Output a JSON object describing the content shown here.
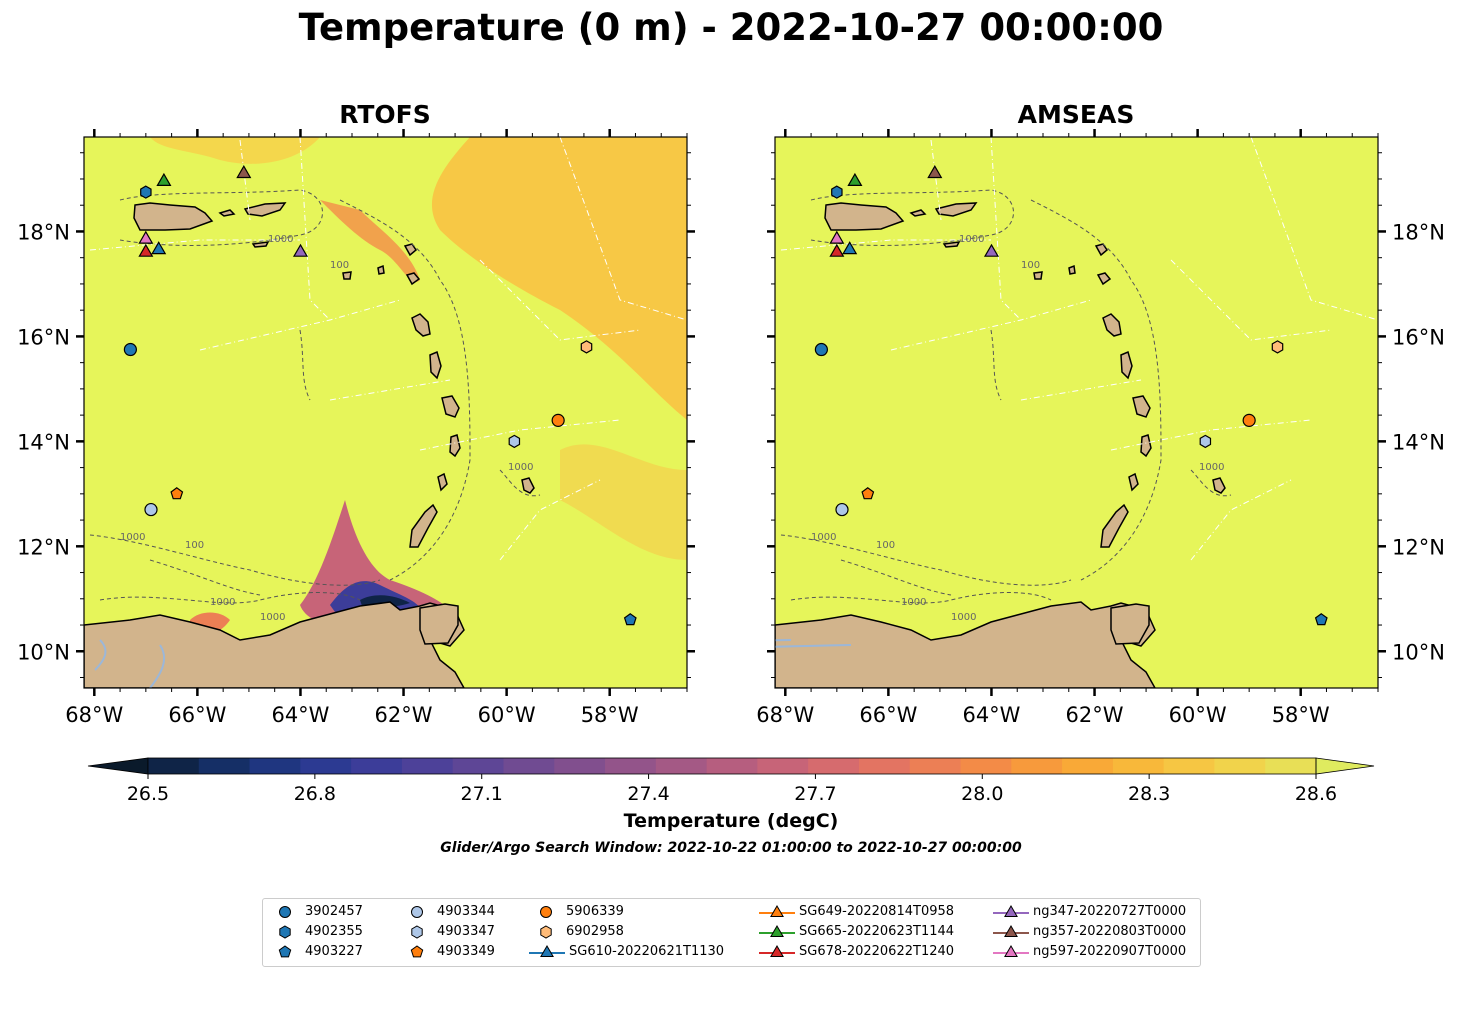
{
  "title": "Temperature (0 m) - 2022-10-27 00:00:00",
  "panels": [
    {
      "title": "RTOFS"
    },
    {
      "title": "AMSEAS"
    }
  ],
  "axes": {
    "lon_ticks": [
      "68°W",
      "66°W",
      "64°W",
      "62°W",
      "60°W",
      "58°W"
    ],
    "lat_ticks": [
      "18°N",
      "16°N",
      "14°N",
      "12°N",
      "10°N"
    ],
    "lon_range": [
      -68.2,
      -56.5
    ],
    "lat_range": [
      9.3,
      19.8
    ]
  },
  "contour_labels": [
    "100",
    "1000"
  ],
  "colorbar": {
    "label": "Temperature (degC)",
    "ticks": [
      "26.5",
      "26.8",
      "27.1",
      "27.4",
      "27.7",
      "28.0",
      "28.3",
      "28.6"
    ],
    "range": [
      26.5,
      28.6
    ],
    "colors": [
      "#0a1a2b",
      "#0f2447",
      "#152f66",
      "#1f3680",
      "#2c3a92",
      "#3c3d99",
      "#4d4199",
      "#5e4696",
      "#704b92",
      "#814f8e",
      "#93548a",
      "#a45985",
      "#b65e7f",
      "#c76478",
      "#d66b6e",
      "#e37462",
      "#ec7f55",
      "#f38b47",
      "#f79a3c",
      "#f9a937",
      "#f8b83a",
      "#f6c643",
      "#f1d34b",
      "#e8df56",
      "#dfeb5f"
    ]
  },
  "colors": {
    "sea_main": "#e6f55a",
    "warm_patch": "#f8c343",
    "land": "#d2b48c",
    "river": "#9cb7d8"
  },
  "search_window": "Glider/Argo Search Window: 2022-10-22 01:00:00 to 2022-10-27 00:00:00",
  "legend": [
    {
      "label": "3902457",
      "marker": "circle",
      "color": "#1f77b4"
    },
    {
      "label": "4902355",
      "marker": "hexagon",
      "color": "#1f77b4"
    },
    {
      "label": "4903227",
      "marker": "pentagon",
      "color": "#1f77b4"
    },
    {
      "label": "4903344",
      "marker": "circle",
      "color": "#aec7e8"
    },
    {
      "label": "4903347",
      "marker": "hexagon",
      "color": "#aec7e8"
    },
    {
      "label": "4903349",
      "marker": "pentagon",
      "color": "#ff7f0e"
    },
    {
      "label": "5906339",
      "marker": "circle",
      "color": "#ff7f0e"
    },
    {
      "label": "6902958",
      "marker": "hexagon",
      "color": "#ffbb78"
    },
    {
      "label": "SG610-20220621T1130",
      "marker": "triangle-line",
      "color": "#1f77b4"
    },
    {
      "label": "SG649-20220814T0958",
      "marker": "triangle-line",
      "color": "#ff7f0e"
    },
    {
      "label": "SG665-20220623T1144",
      "marker": "triangle-line",
      "color": "#2ca02c"
    },
    {
      "label": "SG678-20220622T1240",
      "marker": "triangle-line",
      "color": "#d62728"
    },
    {
      "label": "ng347-20220727T0000",
      "marker": "triangle-line",
      "color": "#9467bd"
    },
    {
      "label": "ng357-20220803T0000",
      "marker": "triangle-line",
      "color": "#8c564b"
    },
    {
      "label": "ng597-20220907T0000",
      "marker": "triangle-line",
      "color": "#e377c2"
    }
  ],
  "markers": [
    {
      "id": "3902457",
      "lon": -67.3,
      "lat": 15.75,
      "shape": "circle",
      "color": "#1f77b4"
    },
    {
      "id": "4902355",
      "lon": -67.0,
      "lat": 18.75,
      "shape": "hexagon",
      "color": "#1f77b4"
    },
    {
      "id": "4903227",
      "lon": -57.6,
      "lat": 10.6,
      "shape": "pentagon",
      "color": "#1f77b4"
    },
    {
      "id": "4903344",
      "lon": -66.9,
      "lat": 12.7,
      "shape": "circle",
      "color": "#aec7e8"
    },
    {
      "id": "4903347",
      "lon": -59.85,
      "lat": 14.0,
      "shape": "hexagon",
      "color": "#aec7e8"
    },
    {
      "id": "4903349",
      "lon": -66.4,
      "lat": 13.0,
      "shape": "pentagon",
      "color": "#ff7f0e"
    },
    {
      "id": "5906339",
      "lon": -59.0,
      "lat": 14.4,
      "shape": "circle",
      "color": "#ff7f0e"
    },
    {
      "id": "6902958",
      "lon": -58.45,
      "lat": 15.8,
      "shape": "hexagon",
      "color": "#ffbb78"
    },
    {
      "id": "SG610-20220621T1130",
      "lon": -66.75,
      "lat": 17.65,
      "shape": "triangle",
      "color": "#1f77b4"
    },
    {
      "id": "SG665-20220623T1144",
      "lon": -66.65,
      "lat": 18.95,
      "shape": "triangle",
      "color": "#2ca02c"
    },
    {
      "id": "SG678-20220622T1240",
      "lon": -67.0,
      "lat": 17.6,
      "shape": "triangle",
      "color": "#d62728"
    },
    {
      "id": "ng347-20220727T0000",
      "lon": -64.0,
      "lat": 17.6,
      "shape": "triangle",
      "color": "#9467bd"
    },
    {
      "id": "ng357-20220803T0000",
      "lon": -65.1,
      "lat": 19.1,
      "shape": "triangle",
      "color": "#8c564b"
    },
    {
      "id": "ng597-20220907T0000",
      "lon": -67.0,
      "lat": 17.85,
      "shape": "triangle",
      "color": "#e377c2"
    }
  ]
}
